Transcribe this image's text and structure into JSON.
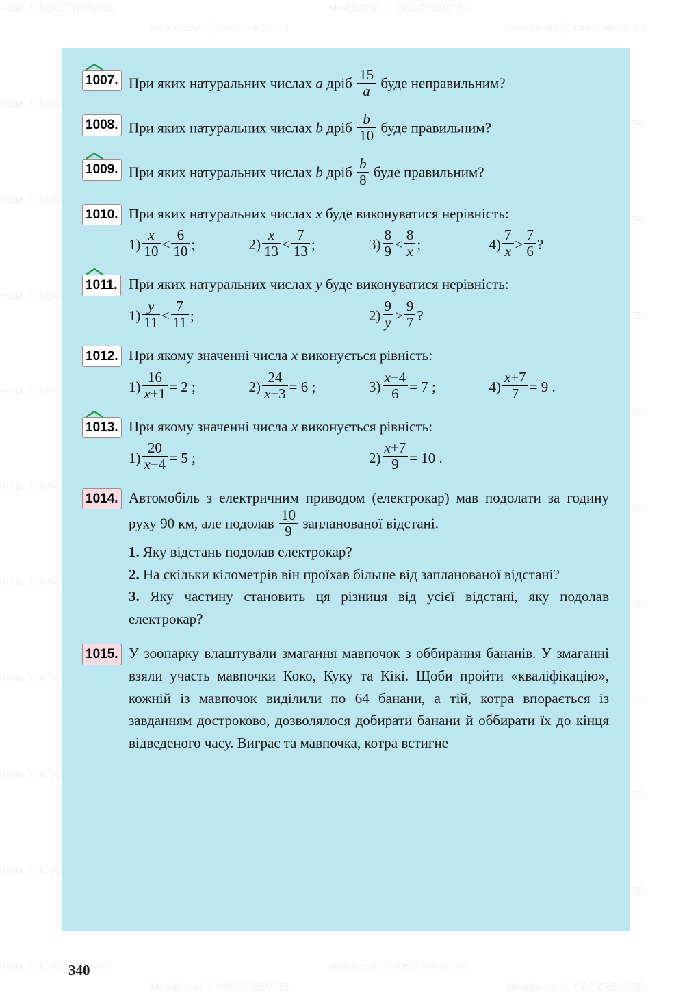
{
  "page_number": "340",
  "watermark": "МояШкола ⓘ OBOZREVATEL",
  "colors": {
    "page_bg": "#bce6f0",
    "numbox_bg": "#ffffff",
    "numbox_pink": "#f9dbe4",
    "text": "#1a1a1a",
    "roof": "#2e9b4f"
  },
  "problems": [
    {
      "num": "1007.",
      "roof": true,
      "pink": false,
      "html": "При яких натуральних числах <span class=\"it\">a</span> дріб <span class=\"frac\"><span class=\"n\">15</span><span class=\"d it\">a</span></span> буде неправильним?"
    },
    {
      "num": "1008.",
      "roof": false,
      "pink": false,
      "html": "При яких натуральних числах <span class=\"it\">b</span> дріб <span class=\"frac\"><span class=\"n it\">b</span><span class=\"d\">10</span></span> буде правильним?"
    },
    {
      "num": "1009.",
      "roof": true,
      "pink": false,
      "html": "При яких натуральних числах <span class=\"it\">b</span> дріб <span class=\"frac\"><span class=\"n it\">b</span><span class=\"d\">8</span></span> буде правильним?"
    },
    {
      "num": "1010.",
      "roof": false,
      "pink": false,
      "html": "При яких натуральних числах <span class=\"it\">x</span> буде виконуватися нерівність:",
      "subs4": [
        "1) <span class=\"frac\"><span class=\"n it\">x</span><span class=\"d\">10</span></span> &lt; <span class=\"frac\"><span class=\"n\">6</span><span class=\"d\">10</span></span> ;",
        "2) <span class=\"frac\"><span class=\"n it\">x</span><span class=\"d\">13</span></span> &lt; <span class=\"frac\"><span class=\"n\">7</span><span class=\"d\">13</span></span> ;",
        "3) <span class=\"frac\"><span class=\"n\">8</span><span class=\"d\">9</span></span> &lt; <span class=\"frac\"><span class=\"n\">8</span><span class=\"d it\">x</span></span> ;",
        "4) <span class=\"frac\"><span class=\"n\">7</span><span class=\"d it\">x</span></span> &gt; <span class=\"frac\"><span class=\"n\">7</span><span class=\"d\">6</span></span> ?"
      ]
    },
    {
      "num": "1011.",
      "roof": true,
      "pink": false,
      "html": "При яких натуральних числах <span class=\"it\">y</span> буде виконуватися нерівність:",
      "subs2": [
        "1) <span class=\"frac\"><span class=\"n it\">y</span><span class=\"d\">11</span></span> &lt; <span class=\"frac\"><span class=\"n\">7</span><span class=\"d\">11</span></span>;",
        "2) <span class=\"frac\"><span class=\"n\">9</span><span class=\"d it\">y</span></span> &gt; <span class=\"frac\"><span class=\"n\">9</span><span class=\"d\">7</span></span> ?"
      ]
    },
    {
      "num": "1012.",
      "roof": false,
      "pink": false,
      "html": "При якому значенні числа <span class=\"it\">x</span> виконується рівність:",
      "subs4": [
        "1) <span class=\"frac\"><span class=\"n\">16</span><span class=\"d\"><span class=\"it\">x</span>+1</span></span> = 2 ;",
        "2) <span class=\"frac\"><span class=\"n\">24</span><span class=\"d\"><span class=\"it\">x</span>−3</span></span> = 6 ;",
        "3) <span class=\"frac\"><span class=\"n\"><span class=\"it\">x</span>−4</span><span class=\"d\">6</span></span> = 7 ;",
        "4) <span class=\"frac\"><span class=\"n\"><span class=\"it\">x</span>+7</span><span class=\"d\">7</span></span> = 9 ."
      ]
    },
    {
      "num": "1013.",
      "roof": true,
      "pink": false,
      "html": "При якому значенні числа <span class=\"it\">x</span> виконується рівність:",
      "subs2": [
        "1) <span class=\"frac\"><span class=\"n\">20</span><span class=\"d\"><span class=\"it\">x</span>−4</span></span> = 5 ;",
        "2) <span class=\"frac\"><span class=\"n\"><span class=\"it\">x</span>+7</span><span class=\"d\">9</span></span> = 10 ."
      ]
    },
    {
      "num": "1014.",
      "roof": false,
      "pink": true,
      "html": "Автомобіль з електричним приводом (електрокар) мав подолати за годину руху 90 км, але подолав <span class=\"frac\"><span class=\"n\">10</span><span class=\"d\">9</span></span> запланованої відстані.",
      "list": [
        "<span class=\"bold\">1.</span> Яку відстань подолав електрокар?",
        "<span class=\"bold\">2.</span> На скільки кілометрів він проїхав більше від запланованої відстані?",
        "<span class=\"bold\">3.</span> Яку частину становить ця різниця від усієї відстані, яку подолав електрокар?"
      ]
    },
    {
      "num": "1015.",
      "roof": false,
      "pink": true,
      "html": "У зоопарку влаштували змагання мавпочок з оббирання бананів. У змаганні взяли участь мавпочки Коко, Куку та Кікі. Щоби пройти «кваліфікацію», кожній із мавпочок виділили по 64 банани, а тій, котра впорається із завданням достроково, дозволялося добирати банани й оббирати їх до кінця відведеного часу. Виграє та мавпочка, котра встигне"
    }
  ]
}
